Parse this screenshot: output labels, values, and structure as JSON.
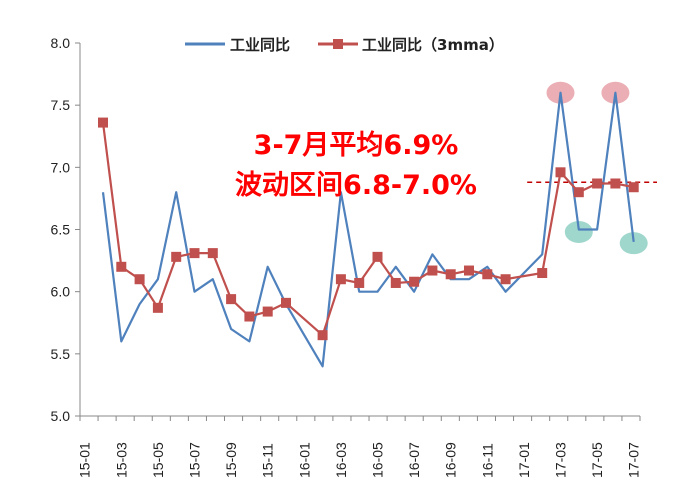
{
  "chart_data": {
    "type": "line",
    "x": [
      "15-02",
      "15-03",
      "15-04",
      "15-05",
      "15-06",
      "15-07",
      "15-08",
      "15-09",
      "15-10",
      "15-11",
      "15-12",
      "16-01",
      "16-02",
      "16-03",
      "16-04",
      "16-05",
      "16-06",
      "16-07",
      "16-08",
      "16-09",
      "16-10",
      "16-11",
      "16-12",
      "17-01",
      "17-02",
      "17-03",
      "17-04",
      "17-05",
      "17-06",
      "17-07"
    ],
    "tick_labels": [
      "15-01",
      "15-03",
      "15-05",
      "15-07",
      "15-09",
      "15-11",
      "16-01",
      "16-03",
      "16-05",
      "16-07",
      "16-09",
      "16-11",
      "17-01",
      "17-03",
      "17-05",
      "17-07"
    ],
    "series": [
      {
        "name": "工业同比",
        "color": "#4f81bd",
        "values": [
          6.8,
          5.6,
          5.9,
          6.1,
          6.8,
          6.0,
          6.1,
          5.7,
          5.6,
          6.2,
          5.9,
          5.65,
          5.4,
          6.8,
          6.0,
          6.0,
          6.2,
          6.0,
          6.3,
          6.1,
          6.1,
          6.2,
          6.0,
          6.15,
          6.3,
          7.6,
          6.5,
          6.5,
          7.6,
          6.4
        ]
      },
      {
        "name": "工业同比（3mma）",
        "color": "#c0504d",
        "marker": "square",
        "values": [
          7.36,
          6.2,
          6.1,
          5.87,
          6.28,
          6.31,
          6.31,
          5.94,
          5.8,
          5.84,
          5.91,
          null,
          5.65,
          6.1,
          6.07,
          6.28,
          6.07,
          6.08,
          6.17,
          6.14,
          6.17,
          6.14,
          6.1,
          null,
          6.15,
          6.96,
          6.8,
          6.87,
          6.87,
          6.84
        ]
      }
    ],
    "ylim": [
      5.0,
      8.0
    ],
    "yticks": [
      "5.0",
      "5.5",
      "6.0",
      "6.5",
      "7.0",
      "7.5",
      "8.0"
    ],
    "reference_line": {
      "y": 6.88,
      "color": "#c00000",
      "style": "dashed"
    },
    "highlights": [
      {
        "x": "17-03",
        "y": 7.6,
        "color": "#e8a0a8"
      },
      {
        "x": "17-06",
        "y": 7.6,
        "color": "#e8a0a8"
      },
      {
        "x": "17-04",
        "y": 6.48,
        "color": "#8fd0c4"
      },
      {
        "x": "17-07",
        "y": 6.39,
        "color": "#8fd0c4"
      }
    ],
    "annotations": [
      "3-7月平均6.9%",
      "波动区间6.8-7.0%"
    ],
    "legend_position": "top-center",
    "grid": false
  }
}
